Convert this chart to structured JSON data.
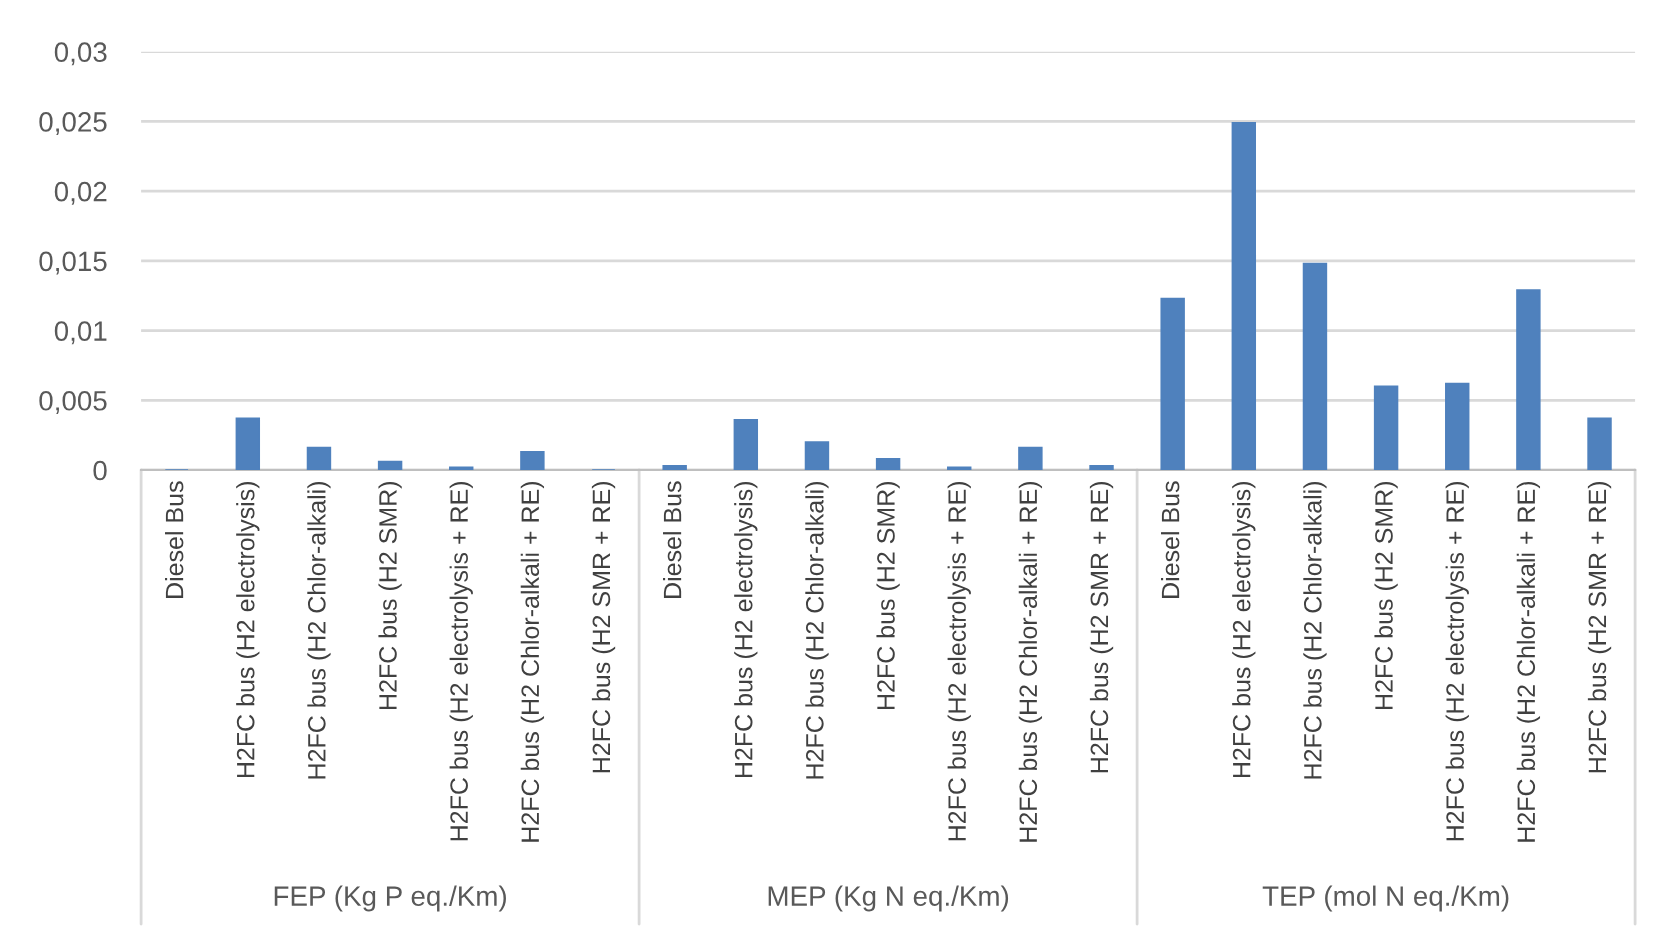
{
  "chart_data": {
    "type": "bar",
    "categories": [
      "Diesel Bus",
      "H2FC bus (H2 electrolysis)",
      "H2FC bus (H2 Chlor-alkali)",
      "H2FC bus (H2 SMR)",
      "H2FC bus (H2 electrolysis + RE)",
      "H2FC bus (H2 Chlor-alkali + RE)",
      "H2FC bus (H2 SMR + RE)",
      "Diesel Bus",
      "H2FC bus (H2 electrolysis)",
      "H2FC bus (H2 Chlor-alkali)",
      "H2FC bus (H2 SMR)",
      "H2FC bus (H2 electrolysis + RE)",
      "H2FC bus (H2 Chlor-alkali + RE)",
      "H2FC bus (H2 SMR + RE)",
      "Diesel Bus",
      "H2FC bus (H2 electrolysis)",
      "H2FC bus (H2 Chlor-alkali)",
      "H2FC bus (H2 SMR)",
      "H2FC bus (H2 electrolysis + RE)",
      "H2FC bus (H2 Chlor-alkali + RE)",
      "H2FC bus (H2 SMR + RE)"
    ],
    "values": [
      0,
      0.0037,
      0.0016,
      0.0006,
      0.0002,
      0.0013,
      0,
      0.0003,
      0.0036,
      0.002,
      0.0008,
      0.0002,
      0.0016,
      0.0003,
      0.0123,
      0.0249,
      0.0148,
      0.006,
      0.0062,
      0.0129,
      0.0037
    ],
    "color": "#4f81bd",
    "ylim": [
      0,
      0.03
    ],
    "yticks": [
      0,
      {
        "value": 0.005,
        "label": "0,005"
      },
      {
        "value": 0.01,
        "label": "0,01"
      },
      {
        "value": 0.015,
        "label": "0,015"
      },
      {
        "value": 0.02,
        "label": "0,02"
      },
      {
        "value": 0.025,
        "label": "0,025"
      },
      {
        "value": 0.03,
        "label": "0,03"
      }
    ],
    "grid": "y",
    "legend": false,
    "annotations": [
      "FEP (Kg P eq./Km)",
      "MEP (Kg N eq./Km)",
      "TEP (mol N eq./Km)"
    ]
  }
}
